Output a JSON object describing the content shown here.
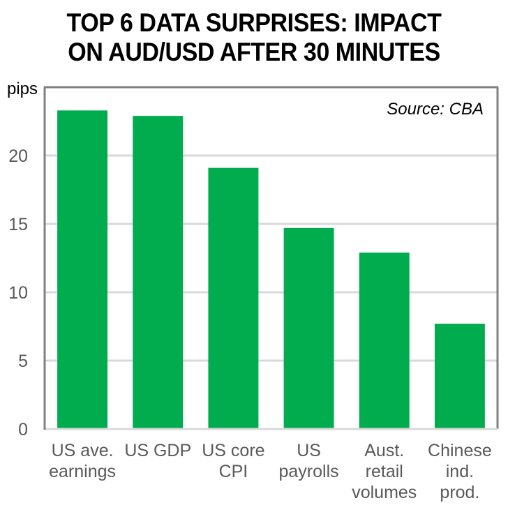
{
  "chart_data": {
    "type": "bar",
    "title": "TOP 6 DATA SURPRISES: IMPACT ON AUD/USD AFTER 30 MINUTES",
    "title_lines": [
      "TOP 6 DATA SURPRISES: IMPACT",
      "ON AUD/USD AFTER 30 MINUTES"
    ],
    "ylabel": "pips",
    "xlabel": "",
    "annotation": "Source: CBA",
    "categories": [
      "US ave. earnings",
      "US GDP",
      "US core CPI",
      "US payrolls",
      "Aust. retail volumes",
      "Chinese ind. prod."
    ],
    "category_lines": [
      [
        "US ave.",
        "earnings"
      ],
      [
        "US GDP"
      ],
      [
        "US core",
        "CPI"
      ],
      [
        "US",
        "payrolls"
      ],
      [
        "Aust.",
        "retail",
        "volumes"
      ],
      [
        "Chinese",
        "ind.",
        "prod."
      ]
    ],
    "values": [
      23.3,
      22.9,
      19.1,
      14.7,
      12.9,
      7.7
    ],
    "ylim": [
      0,
      25
    ],
    "yticks": [
      0,
      5,
      10,
      15,
      20
    ],
    "grid": true,
    "legend": "none",
    "colors": {
      "bar": "#00ac4e",
      "axis": "#808080",
      "grid": "#d9d9d9"
    }
  }
}
